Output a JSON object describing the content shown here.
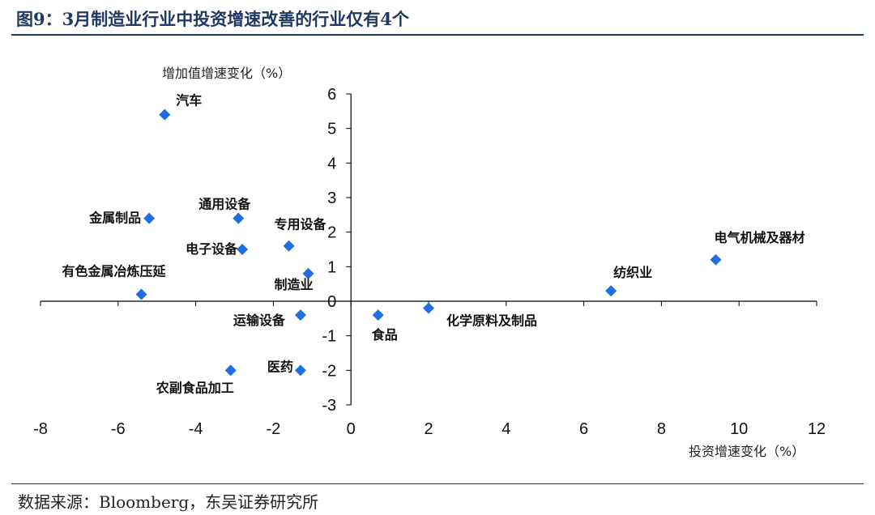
{
  "title": "图9：3月制造业行业中投资增速改善的行业仅有4个",
  "source": "数据来源：Bloomberg，东吴证券研究所",
  "chart_data": {
    "type": "scatter",
    "title": "图9：3月制造业行业中投资增速改善的行业仅有4个",
    "xlabel": "投资增速变化（%）",
    "ylabel": "增加值增速变化（%）",
    "xlim": [
      -8,
      12
    ],
    "ylim": [
      -3,
      6
    ],
    "xticks": [
      -8,
      -6,
      -4,
      -2,
      0,
      2,
      4,
      6,
      8,
      10,
      12
    ],
    "yticks": [
      -3,
      -2,
      -1,
      0,
      1,
      2,
      3,
      4,
      5,
      6
    ],
    "marker_color": "#1f6fe0",
    "points": [
      {
        "label": "汽车",
        "x": -4.8,
        "y": 5.4
      },
      {
        "label": "金属制品",
        "x": -5.2,
        "y": 2.4
      },
      {
        "label": "通用设备",
        "x": -2.9,
        "y": 2.4
      },
      {
        "label": "专用设备",
        "x": -1.6,
        "y": 1.6
      },
      {
        "label": "电子设备",
        "x": -2.8,
        "y": 1.5
      },
      {
        "label": "制造业",
        "x": -1.1,
        "y": 0.8
      },
      {
        "label": "有色金属冶炼压延",
        "x": -5.4,
        "y": 0.2
      },
      {
        "label": "运输设备",
        "x": -1.3,
        "y": -0.4
      },
      {
        "label": "食品",
        "x": 0.7,
        "y": -0.4
      },
      {
        "label": "化学原料及制品",
        "x": 2.0,
        "y": -0.2
      },
      {
        "label": "纺织业",
        "x": 6.7,
        "y": 0.3
      },
      {
        "label": "电气机械及器材",
        "x": 9.4,
        "y": 1.2
      },
      {
        "label": "农副食品加工",
        "x": -3.1,
        "y": -2.0
      },
      {
        "label": "医药",
        "x": -1.3,
        "y": -2.0
      }
    ]
  }
}
